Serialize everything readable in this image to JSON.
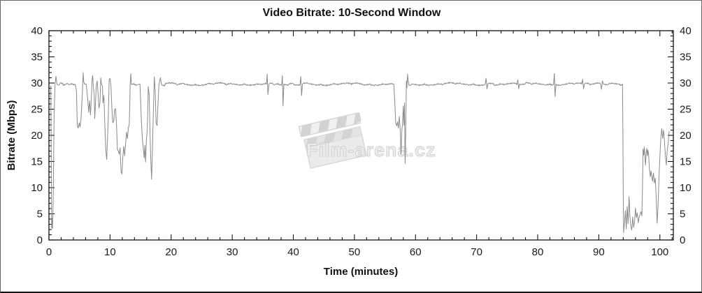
{
  "watermark": {
    "text": "Film-arena.cz",
    "icon": "clapperboard-icon",
    "color": "#d9d9d9"
  },
  "chart_data": {
    "type": "line",
    "title": "Video Bitrate: 10-Second Window",
    "xlabel": "Time (minutes)",
    "ylabel": "Bitrate (Mbps)",
    "xlim": [
      0,
      102.2
    ],
    "ylim": [
      0,
      40
    ],
    "x_major_ticks": [
      0,
      10,
      20,
      30,
      40,
      50,
      60,
      70,
      80,
      90,
      100
    ],
    "x_minor_step": 2,
    "y_major_ticks": [
      0,
      5,
      10,
      15,
      20,
      25,
      30,
      35,
      40
    ],
    "y_minor_step": 1,
    "grid": false,
    "legend": "none",
    "mirrored_axes": true,
    "axis_color": "#111111",
    "line_color": "#8a8a8a",
    "series": [
      {
        "name": "video-bitrate-10s",
        "points": [
          [
            0.3,
            29.5
          ],
          [
            0.36,
            20.0
          ],
          [
            0.44,
            2.3
          ],
          [
            0.52,
            4.2
          ],
          [
            0.58,
            2.2
          ],
          [
            0.7,
            8.0
          ],
          [
            0.85,
            24.0
          ],
          [
            1.0,
            29.6
          ],
          [
            1.15,
            31.3
          ],
          [
            1.3,
            29.8
          ],
          [
            1.8,
            29.9
          ],
          [
            2.3,
            29.7
          ],
          [
            2.8,
            29.9
          ],
          [
            3.3,
            29.7
          ],
          [
            3.8,
            29.85
          ],
          [
            4.3,
            29.75
          ],
          [
            4.5,
            28.5
          ],
          [
            4.65,
            21.8
          ],
          [
            4.8,
            21.4
          ],
          [
            4.95,
            22.4
          ],
          [
            5.1,
            21.6
          ],
          [
            5.25,
            23.2
          ],
          [
            5.45,
            27.5
          ],
          [
            5.6,
            32.0
          ],
          [
            5.7,
            30.2
          ],
          [
            5.85,
            29.8
          ],
          [
            6.1,
            29.8
          ],
          [
            6.35,
            26.8
          ],
          [
            6.5,
            24.4
          ],
          [
            6.65,
            26.6
          ],
          [
            6.8,
            23.9
          ],
          [
            6.95,
            27.2
          ],
          [
            7.05,
            30.6
          ],
          [
            7.15,
            31.4
          ],
          [
            7.25,
            29.6
          ],
          [
            7.4,
            27.8
          ],
          [
            7.5,
            23.2
          ],
          [
            7.62,
            26.2
          ],
          [
            7.75,
            29.6
          ],
          [
            7.9,
            30.4
          ],
          [
            8.05,
            27.8
          ],
          [
            8.2,
            25.2
          ],
          [
            8.35,
            26.3
          ],
          [
            8.48,
            31.0
          ],
          [
            8.6,
            29.8
          ],
          [
            8.75,
            29.4
          ],
          [
            8.85,
            26.2
          ],
          [
            9.0,
            27.6
          ],
          [
            9.15,
            21.8
          ],
          [
            9.3,
            17.2
          ],
          [
            9.45,
            15.4
          ],
          [
            9.58,
            19.2
          ],
          [
            9.72,
            23.5
          ],
          [
            9.85,
            30.7
          ],
          [
            10.0,
            30.9
          ],
          [
            10.15,
            29.4
          ],
          [
            10.3,
            25.2
          ],
          [
            10.45,
            22.4
          ],
          [
            10.6,
            22.7
          ],
          [
            10.75,
            24.9
          ],
          [
            10.9,
            25.1
          ],
          [
            11.05,
            22.2
          ],
          [
            11.2,
            17.3
          ],
          [
            11.35,
            17.0
          ],
          [
            11.5,
            16.4
          ],
          [
            11.65,
            17.6
          ],
          [
            11.8,
            13.1
          ],
          [
            11.95,
            12.6
          ],
          [
            12.1,
            15.9
          ],
          [
            12.25,
            17.9
          ],
          [
            12.4,
            16.1
          ],
          [
            12.55,
            18.4
          ],
          [
            12.7,
            20.6
          ],
          [
            12.85,
            19.4
          ],
          [
            13.0,
            21.4
          ],
          [
            13.15,
            22.1
          ],
          [
            13.3,
            29.7
          ],
          [
            13.4,
            31.8
          ],
          [
            13.5,
            29.7
          ],
          [
            14.0,
            29.8
          ],
          [
            14.5,
            29.7
          ],
          [
            14.9,
            29.8
          ],
          [
            15.05,
            25.0
          ],
          [
            15.15,
            22.3
          ],
          [
            15.3,
            19.2
          ],
          [
            15.45,
            17.4
          ],
          [
            15.6,
            15.7
          ],
          [
            15.7,
            18.1
          ],
          [
            15.82,
            14.9
          ],
          [
            15.95,
            19.2
          ],
          [
            16.1,
            21.2
          ],
          [
            16.25,
            29.3
          ],
          [
            16.4,
            27.9
          ],
          [
            16.55,
            20.2
          ],
          [
            16.68,
            15.1
          ],
          [
            16.8,
            11.6
          ],
          [
            16.95,
            17.9
          ],
          [
            17.1,
            24.8
          ],
          [
            17.25,
            31.2
          ],
          [
            17.4,
            28.2
          ],
          [
            17.55,
            22.2
          ],
          [
            17.7,
            21.9
          ],
          [
            17.85,
            26.1
          ],
          [
            18.0,
            29.7
          ],
          [
            18.25,
            31.0
          ],
          [
            18.4,
            29.8
          ],
          [
            19.0,
            29.7
          ],
          [
            20.0,
            29.9
          ],
          [
            21.0,
            29.6
          ],
          [
            22.0,
            29.9
          ],
          [
            23.0,
            29.7
          ],
          [
            24.0,
            29.85
          ],
          [
            25.0,
            29.65
          ],
          [
            26.0,
            29.9
          ],
          [
            27.0,
            29.75
          ],
          [
            28.0,
            29.9
          ],
          [
            29.0,
            29.6
          ],
          [
            30.0,
            29.85
          ],
          [
            31.0,
            29.7
          ],
          [
            32.0,
            29.9
          ],
          [
            33.0,
            29.75
          ],
          [
            34.0,
            29.85
          ],
          [
            35.0,
            29.7
          ],
          [
            35.6,
            29.8
          ],
          [
            35.72,
            31.7
          ],
          [
            35.85,
            27.8
          ],
          [
            36.0,
            29.8
          ],
          [
            36.8,
            29.7
          ],
          [
            37.6,
            29.9
          ],
          [
            38.1,
            29.8
          ],
          [
            38.2,
            31.4
          ],
          [
            38.32,
            25.6
          ],
          [
            38.45,
            29.8
          ],
          [
            39.2,
            29.7
          ],
          [
            40.0,
            29.85
          ],
          [
            41.1,
            29.8
          ],
          [
            41.22,
            31.2
          ],
          [
            41.35,
            27.6
          ],
          [
            41.5,
            29.8
          ],
          [
            42.5,
            29.9
          ],
          [
            43.5,
            29.7
          ],
          [
            44.5,
            29.85
          ],
          [
            45.5,
            29.7
          ],
          [
            46.5,
            29.9
          ],
          [
            47.5,
            29.7
          ],
          [
            48.5,
            29.85
          ],
          [
            49.5,
            29.7
          ],
          [
            50.5,
            29.9
          ],
          [
            51.5,
            29.7
          ],
          [
            52.5,
            29.85
          ],
          [
            53.5,
            29.7
          ],
          [
            54.5,
            29.9
          ],
          [
            55.5,
            29.75
          ],
          [
            56.2,
            29.8
          ],
          [
            56.45,
            29.8
          ],
          [
            56.6,
            26.5
          ],
          [
            56.75,
            22.4
          ],
          [
            56.9,
            21.8
          ],
          [
            57.05,
            22.6
          ],
          [
            57.2,
            21.4
          ],
          [
            57.35,
            23.6
          ],
          [
            57.5,
            21.1
          ],
          [
            57.62,
            16.4
          ],
          [
            57.75,
            20.6
          ],
          [
            57.88,
            22.4
          ],
          [
            58.0,
            25.6
          ],
          [
            58.1,
            21.9
          ],
          [
            58.2,
            26.2
          ],
          [
            58.3,
            14.6
          ],
          [
            58.4,
            21.2
          ],
          [
            58.5,
            30.4
          ],
          [
            58.6,
            29.1
          ],
          [
            58.7,
            31.7
          ],
          [
            58.8,
            30.4
          ],
          [
            58.95,
            29.5
          ],
          [
            59.5,
            29.8
          ],
          [
            60.5,
            29.7
          ],
          [
            61.5,
            29.9
          ],
          [
            62.5,
            29.7
          ],
          [
            63.5,
            29.85
          ],
          [
            64.5,
            29.7
          ],
          [
            65.5,
            29.9
          ],
          [
            66.5,
            29.75
          ],
          [
            67.5,
            29.85
          ],
          [
            68.5,
            29.7
          ],
          [
            69.5,
            29.9
          ],
          [
            70.5,
            29.7
          ],
          [
            71.4,
            29.8
          ],
          [
            71.55,
            30.9
          ],
          [
            71.7,
            28.9
          ],
          [
            71.85,
            29.8
          ],
          [
            72.8,
            29.7
          ],
          [
            73.8,
            29.9
          ],
          [
            74.8,
            29.75
          ],
          [
            75.8,
            29.85
          ],
          [
            76.6,
            29.7
          ],
          [
            76.75,
            30.6
          ],
          [
            76.9,
            28.9
          ],
          [
            77.05,
            29.8
          ],
          [
            78.0,
            29.9
          ],
          [
            79.0,
            29.7
          ],
          [
            80.0,
            29.85
          ],
          [
            81.0,
            29.7
          ],
          [
            82.0,
            29.9
          ],
          [
            82.6,
            29.8
          ],
          [
            82.72,
            31.8
          ],
          [
            82.85,
            27.4
          ],
          [
            83.0,
            29.8
          ],
          [
            84.0,
            29.7
          ],
          [
            85.0,
            29.9
          ],
          [
            86.0,
            29.75
          ],
          [
            87.2,
            29.8
          ],
          [
            87.35,
            30.7
          ],
          [
            87.5,
            28.9
          ],
          [
            87.65,
            29.8
          ],
          [
            88.5,
            29.7
          ],
          [
            89.5,
            29.9
          ],
          [
            90.3,
            29.8
          ],
          [
            90.45,
            28.8
          ],
          [
            90.6,
            30.4
          ],
          [
            90.75,
            29.8
          ],
          [
            91.5,
            29.7
          ],
          [
            92.5,
            29.85
          ],
          [
            93.4,
            29.8
          ],
          [
            93.88,
            29.8
          ],
          [
            93.95,
            20.0
          ],
          [
            94.0,
            8.0
          ],
          [
            94.06,
            1.4
          ],
          [
            94.2,
            3.2
          ],
          [
            94.35,
            5.6
          ],
          [
            94.5,
            2.1
          ],
          [
            94.65,
            6.4
          ],
          [
            94.8,
            3.1
          ],
          [
            94.95,
            8.3
          ],
          [
            95.1,
            4.2
          ],
          [
            95.25,
            2.6
          ],
          [
            95.4,
            1.9
          ],
          [
            95.55,
            4.4
          ],
          [
            95.7,
            2.4
          ],
          [
            95.85,
            3.4
          ],
          [
            96.0,
            6.1
          ],
          [
            96.15,
            4.3
          ],
          [
            96.3,
            5.2
          ],
          [
            96.45,
            3.3
          ],
          [
            96.6,
            4.4
          ],
          [
            96.75,
            4.9
          ],
          [
            96.9,
            5.4
          ],
          [
            97.05,
            4.6
          ],
          [
            97.15,
            10.0
          ],
          [
            97.25,
            17.4
          ],
          [
            97.35,
            16.2
          ],
          [
            97.45,
            17.8
          ],
          [
            97.55,
            15.9
          ],
          [
            97.65,
            14.3
          ],
          [
            97.75,
            16.6
          ],
          [
            97.85,
            17.5
          ],
          [
            97.95,
            16.1
          ],
          [
            98.05,
            17.2
          ],
          [
            98.15,
            16.4
          ],
          [
            98.3,
            13.4
          ],
          [
            98.45,
            12.1
          ],
          [
            98.55,
            13.2
          ],
          [
            98.65,
            12.4
          ],
          [
            98.8,
            11.2
          ],
          [
            98.95,
            12.8
          ],
          [
            99.1,
            10.9
          ],
          [
            99.25,
            11.8
          ],
          [
            99.4,
            8.1
          ],
          [
            99.55,
            3.2
          ],
          [
            99.7,
            6.8
          ],
          [
            99.85,
            12.0
          ],
          [
            100.0,
            16.0
          ],
          [
            100.15,
            19.5
          ],
          [
            100.3,
            21.3
          ],
          [
            100.45,
            19.4
          ],
          [
            100.6,
            21.0
          ],
          [
            100.75,
            18.9
          ],
          [
            100.9,
            16.2
          ],
          [
            101.05,
            14.3
          ],
          [
            101.2,
            17.2
          ],
          [
            101.35,
            18.4
          ],
          [
            101.5,
            20.8
          ]
        ]
      }
    ]
  }
}
